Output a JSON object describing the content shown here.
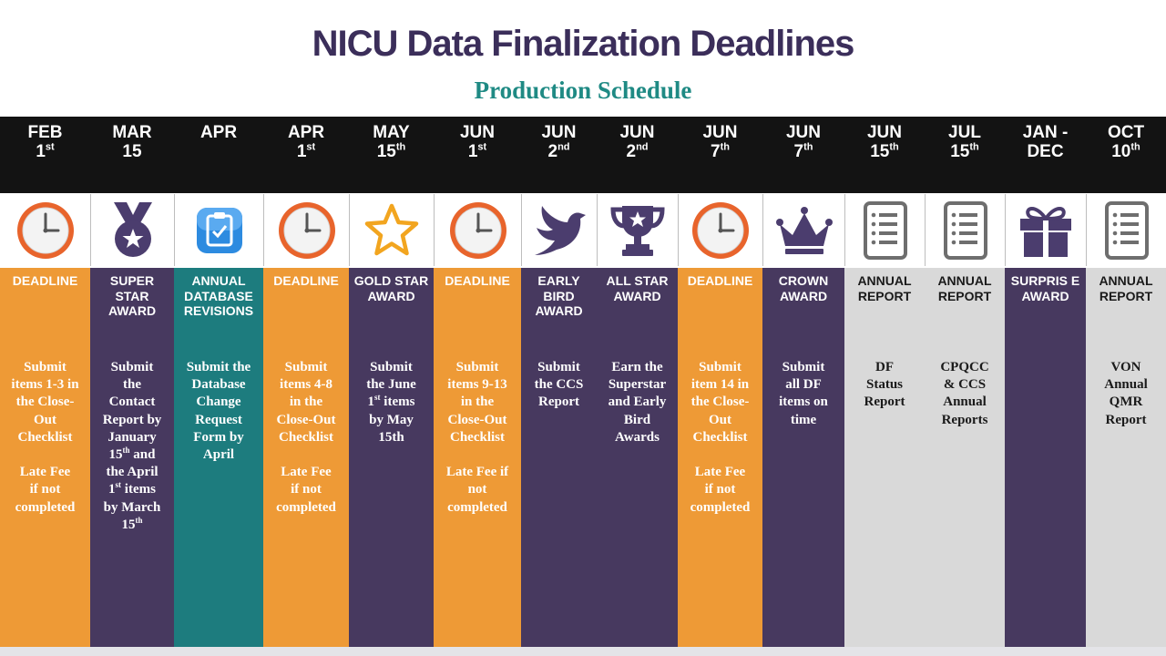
{
  "title": "NICU Data Finalization Deadlines",
  "subtitle": "Production Schedule",
  "colors": {
    "orange": "#ee9a36",
    "purple": "#47395f",
    "teal": "#1d7c7e",
    "gray": "#d9d9d9",
    "header": "#131313"
  },
  "columns": [
    {
      "month": "FEB",
      "day": "1",
      "sup": "st",
      "icon": "clock-icon",
      "label": "DEADLINE",
      "theme": "orange",
      "desc": [
        [
          "Submit"
        ],
        [
          "items 1-3 in"
        ],
        [
          "the Close-"
        ],
        [
          "Out"
        ],
        [
          "Checklist"
        ],
        [
          ""
        ],
        [
          "Late Fee"
        ],
        [
          "if not"
        ],
        [
          "completed"
        ]
      ]
    },
    {
      "month": "MAR",
      "day": "15",
      "sup": "",
      "icon": "medal-icon",
      "label": "SUPER STAR AWARD",
      "theme": "purple",
      "desc": [
        [
          "Submit"
        ],
        [
          "the"
        ],
        [
          "Contact"
        ],
        [
          "Report by"
        ],
        [
          "January"
        ],
        [
          "15",
          "th",
          " and"
        ],
        [
          "the  April"
        ],
        [
          "1",
          "st",
          " items"
        ],
        [
          "by March"
        ],
        [
          "15",
          "th"
        ]
      ]
    },
    {
      "month": "APR",
      "day": "",
      "sup": "",
      "icon": "clipboard-icon",
      "label": "ANNUAL DATABASE REVISIONS",
      "theme": "teal",
      "desc": [
        [
          "Submit the"
        ],
        [
          "Database"
        ],
        [
          "Change"
        ],
        [
          "Request"
        ],
        [
          "Form by"
        ],
        [
          "April"
        ]
      ]
    },
    {
      "month": "APR",
      "day": "1",
      "sup": "st",
      "icon": "clock-icon",
      "label": "DEADLINE",
      "theme": "orange",
      "desc": [
        [
          "Submit"
        ],
        [
          "items 4-8"
        ],
        [
          "in the"
        ],
        [
          "Close-Out"
        ],
        [
          "Checklist"
        ],
        [
          ""
        ],
        [
          "Late Fee"
        ],
        [
          "if not"
        ],
        [
          "completed"
        ]
      ]
    },
    {
      "month": "MAY",
      "day": "15",
      "sup": "th",
      "icon": "star-icon",
      "label": "GOLD STAR AWARD",
      "theme": "purple",
      "desc": [
        [
          "Submit"
        ],
        [
          "the June"
        ],
        [
          "1",
          "st",
          " items"
        ],
        [
          "by May"
        ],
        [
          "15th"
        ]
      ]
    },
    {
      "month": "JUN",
      "day": "1",
      "sup": "st",
      "icon": "clock-icon",
      "label": "DEADLINE",
      "theme": "orange",
      "desc": [
        [
          "Submit"
        ],
        [
          "items 9-13"
        ],
        [
          "in the"
        ],
        [
          "Close-Out"
        ],
        [
          "Checklist"
        ],
        [
          ""
        ],
        [
          "Late Fee if"
        ],
        [
          "not"
        ],
        [
          "completed"
        ]
      ]
    },
    {
      "month": "JUN",
      "day": "2",
      "sup": "nd",
      "icon": "bird-icon",
      "label": "EARLY BIRD AWARD",
      "theme": "purple",
      "desc": [
        [
          "Submit"
        ],
        [
          "the CCS"
        ],
        [
          "Report"
        ]
      ]
    },
    {
      "month": "JUN",
      "day": "2",
      "sup": "nd",
      "icon": "trophy-icon",
      "label": "ALL STAR AWARD",
      "theme": "purple",
      "desc": [
        [
          "Earn the"
        ],
        [
          "Superstar"
        ],
        [
          "and Early"
        ],
        [
          "Bird"
        ],
        [
          "Awards"
        ]
      ]
    },
    {
      "month": "JUN",
      "day": "7",
      "sup": "th",
      "icon": "clock-icon",
      "label": "DEADLINE",
      "theme": "orange",
      "desc": [
        [
          "Submit"
        ],
        [
          "item 14  in"
        ],
        [
          "the Close-"
        ],
        [
          "Out"
        ],
        [
          "Checklist"
        ],
        [
          ""
        ],
        [
          "Late Fee"
        ],
        [
          "if not"
        ],
        [
          "completed"
        ]
      ]
    },
    {
      "month": "JUN",
      "day": "7",
      "sup": "th",
      "icon": "crown-icon",
      "label": "CROWN AWARD",
      "theme": "purple",
      "desc": [
        [
          "Submit"
        ],
        [
          "all DF"
        ],
        [
          "items  on"
        ],
        [
          "time"
        ]
      ]
    },
    {
      "month": "JUN",
      "day": "15",
      "sup": "th",
      "icon": "report-icon",
      "label": "ANNUAL REPORT",
      "theme": "gray",
      "desc": [
        [
          "DF"
        ],
        [
          "Status"
        ],
        [
          "Report"
        ]
      ]
    },
    {
      "month": "JUL",
      "day": "15",
      "sup": "th",
      "icon": "report-icon",
      "label": "ANNUAL REPORT",
      "theme": "gray",
      "desc": [
        [
          "CPQCC"
        ],
        [
          "& CCS"
        ],
        [
          "Annual"
        ],
        [
          "Reports"
        ]
      ]
    },
    {
      "month": "JAN -",
      "day": "DEC",
      "sup": "",
      "icon": "gift-icon",
      "label": "SURPRIS E AWARD",
      "theme": "purple",
      "desc": []
    },
    {
      "month": "OCT",
      "day": "10",
      "sup": "th",
      "icon": "report-icon",
      "label": "ANNUAL REPORT",
      "theme": "gray",
      "desc": [
        [
          "VON"
        ],
        [
          "Annual"
        ],
        [
          "QMR"
        ],
        [
          "Report"
        ]
      ]
    }
  ]
}
